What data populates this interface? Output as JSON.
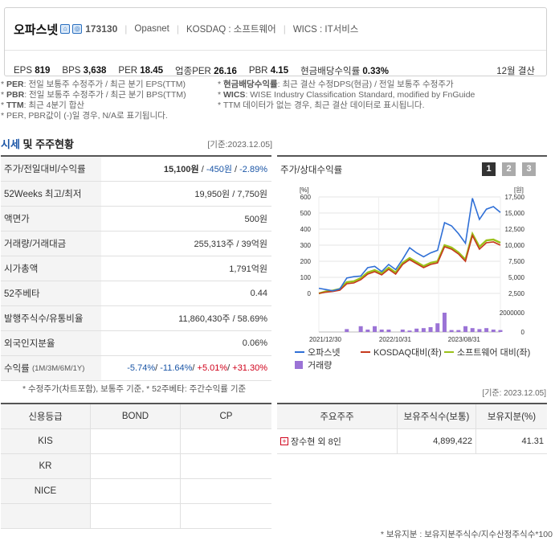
{
  "header": {
    "company_name": "오파스넷",
    "code": "173130",
    "eng_name": "Opasnet",
    "market": "KOSDAQ : 소프트웨어",
    "wics": "WICS : IT서비스",
    "metrics": [
      {
        "label": "EPS",
        "value": "819"
      },
      {
        "label": "BPS",
        "value": "3,638"
      },
      {
        "label": "PER",
        "value": "18.45"
      },
      {
        "label": "업종PER",
        "value": "26.16"
      },
      {
        "label": "PBR",
        "value": "4.15"
      },
      {
        "label": "현금배당수익률",
        "value": "0.33%"
      }
    ],
    "fiscal": "12월 결산"
  },
  "notes": {
    "left": [
      {
        "key": "PER",
        "text": ": 전일 보통주 수정주가 / 최근 분기 EPS(TTM)"
      },
      {
        "key": "PBR",
        "text": ": 전일 보통주 수정주가 / 최근 분기 BPS(TTM)"
      },
      {
        "key": "TTM",
        "text": ": 최근 4분기 합산"
      }
    ],
    "left_extra": "* PER, PBR값이 (-)일 경우, N/A로 표기됩니다.",
    "right": [
      {
        "key": "현금배당수익률",
        "text": ": 최근 결산 수정DPS(현금) / 전일 보통주 수정주가"
      },
      {
        "key": "WICS",
        "text": ": WISE Industry Classification Standard, modified by FnGuide"
      }
    ],
    "right_extra": "* TTM 데이터가 없는 경우, 최근 결산 데이터로 표시됩니다."
  },
  "section": {
    "title_a": "시세",
    "title_b": " 및 주주현황",
    "date": "[기준:2023.12.05]"
  },
  "market": {
    "price_label": "주가/전일대비/수익률",
    "price": "15,100원",
    "change": "-450원",
    "return": "-2.89%",
    "rows": [
      {
        "label": "52Weeks 최고/최저",
        "value": "19,950원 / 7,750원"
      },
      {
        "label": "액면가",
        "value": "500원"
      },
      {
        "label": "거래량/거래대금",
        "value": "255,313주 / 39억원"
      },
      {
        "label": "시가총액",
        "value": "1,791억원"
      },
      {
        "label": "52주베타",
        "value": "0.44"
      },
      {
        "label": "발행주식수/유통비율",
        "value": "11,860,430주 / 58.69%"
      },
      {
        "label": "외국인지분율",
        "value": "0.06%"
      }
    ],
    "returns_label": "수익률",
    "returns_sub": "(1M/3M/6M/1Y)",
    "returns": [
      "-5.74%",
      "-11.64%",
      "+5.01%",
      "+31.30%"
    ],
    "footnote": "* 수정주가(차트포함), 보통주 기준, * 52주베타: 주간수익률 기준"
  },
  "chart_panel": {
    "title": "주가/상대수익률",
    "buttons": [
      "1",
      "2",
      "3"
    ],
    "colors": {
      "price": "#2f6fd6",
      "kosdaq": "#c6391d",
      "software": "#9bc11a",
      "volume": "#9b73d6"
    }
  },
  "chart_data": {
    "type": "line",
    "left_axis_label": "[%]",
    "right_axis_label": "[원]",
    "left_ticks": [
      "600",
      "500",
      "400",
      "300",
      "200",
      "100",
      "0"
    ],
    "right_ticks": [
      "17,500",
      "15,000",
      "12,500",
      "10,000",
      "7,500",
      "5,000",
      "2,500"
    ],
    "volume_ticks": [
      "2000000",
      "0"
    ],
    "x_ticks": [
      "2021/12/30",
      "2022/10/31",
      "2023/08/31"
    ],
    "ylim_pct": [
      0,
      600
    ],
    "series": [
      {
        "name": "오파스넷",
        "axis": "right",
        "values": [
          3300,
          3100,
          2900,
          3200,
          4900,
          5100,
          5200,
          6500,
          6700,
          5900,
          7000,
          6200,
          7800,
          9600,
          8800,
          8200,
          8800,
          9200,
          13500,
          13000,
          11800,
          10300,
          17300,
          14000,
          15600,
          16000,
          15100
        ]
      },
      {
        "name": "KOSDAQ대비(좌)",
        "axis": "left",
        "values": [
          0,
          8,
          12,
          20,
          60,
          65,
          85,
          120,
          135,
          115,
          150,
          120,
          180,
          210,
          185,
          160,
          180,
          190,
          290,
          275,
          245,
          200,
          360,
          275,
          315,
          320,
          300
        ]
      },
      {
        "name": "소프트웨어 대비(좌)",
        "axis": "left",
        "values": [
          0,
          12,
          18,
          28,
          70,
          75,
          95,
          130,
          145,
          125,
          160,
          130,
          190,
          220,
          195,
          170,
          190,
          200,
          300,
          285,
          255,
          210,
          370,
          290,
          330,
          335,
          315
        ]
      }
    ],
    "volume": {
      "name": "거래량",
      "values": [
        0,
        0,
        0,
        0,
        300000,
        0,
        600000,
        250000,
        600000,
        250000,
        250000,
        0,
        250000,
        150000,
        350000,
        400000,
        500000,
        900000,
        2000000,
        200000,
        200000,
        600000,
        400000,
        300000,
        400000,
        250000,
        200000
      ]
    },
    "volume_ylim": [
      0,
      2000000
    ],
    "legend": [
      "오파스넷",
      "KOSDAQ대비(좌)",
      "소프트웨어 대비(좌)",
      "거래량"
    ]
  },
  "credit": {
    "headers": [
      "신용등급",
      "BOND",
      "CP"
    ],
    "rows": [
      "KIS",
      "KR",
      "NICE",
      ""
    ]
  },
  "holders": {
    "date": "[기준: 2023.12.05]",
    "headers": [
      "주요주주",
      "보유주식수(보통)",
      "보유지분(%)"
    ],
    "rows": [
      {
        "name": "장수현 외 8인",
        "shares": "4,899,422",
        "pct": "41.31"
      }
    ],
    "footnote": "* 보유지분 : 보유지분주식수/지수산정주식수*100"
  }
}
